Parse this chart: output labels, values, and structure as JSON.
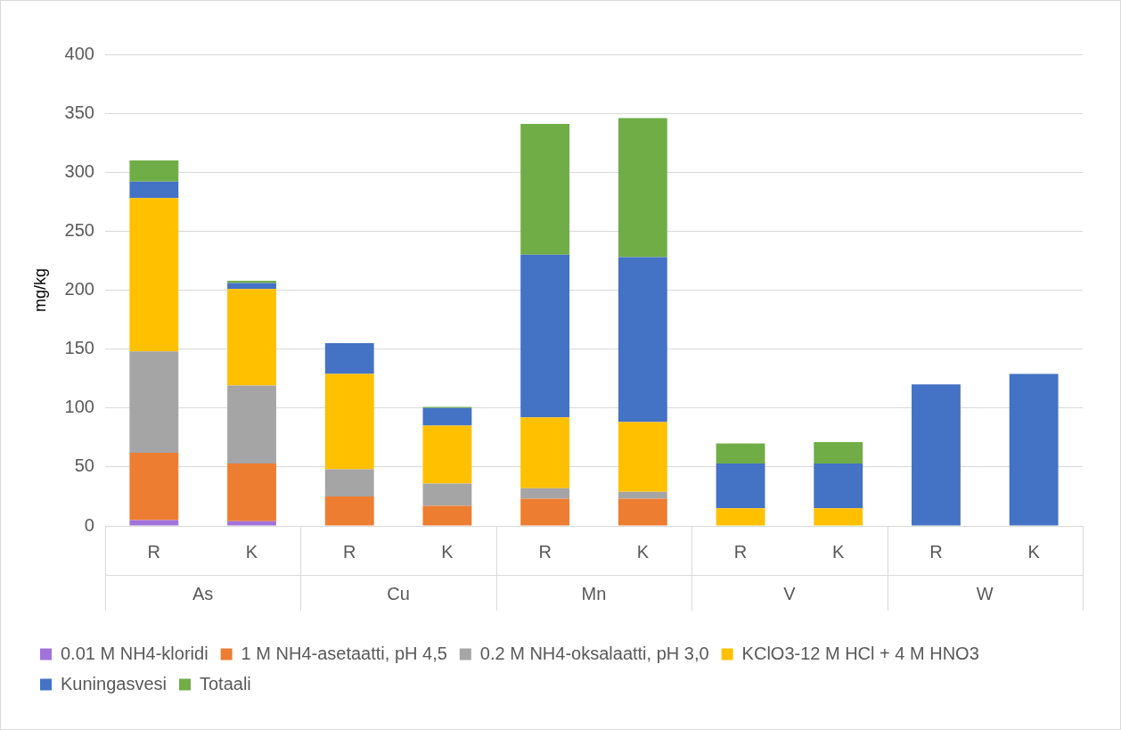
{
  "chart_data": {
    "type": "bar",
    "stacked": true,
    "ylabel": "mg/kg",
    "categories": [
      "R",
      "K",
      "R",
      "K",
      "R",
      "K",
      "R",
      "K",
      "R",
      "K"
    ],
    "annotations": [
      "As",
      "Cu",
      "Mn",
      "V",
      "W"
    ],
    "series": [
      {
        "name": "0.01 M NH4-kloridi",
        "color": "#a173d8",
        "values": [
          5,
          4,
          null,
          null,
          null,
          null,
          null,
          null,
          null,
          null
        ]
      },
      {
        "name": "1 M NH4-asetaatti, pH 4,5",
        "color": "#ed7d31",
        "values": [
          57,
          49,
          25,
          17,
          23,
          23,
          null,
          null,
          null,
          null
        ]
      },
      {
        "name": "0.2 M NH4-oksalaatti, pH 3,0",
        "color": "#a5a5a5",
        "values": [
          86,
          66,
          23,
          19,
          9,
          6,
          null,
          null,
          null,
          null
        ]
      },
      {
        "name": "KClO3-12 M HCl + 4 M HNO3",
        "color": "#ffc000",
        "values": [
          130,
          82,
          81,
          49,
          60,
          59,
          15,
          15,
          null,
          null
        ]
      },
      {
        "name": "Kuningasvesi",
        "color": "#4472c4",
        "values": [
          14,
          5,
          26,
          15,
          138,
          140,
          38,
          38,
          120,
          129
        ]
      },
      {
        "name": "Totaali",
        "color": "#70ad47",
        "values": [
          18,
          2,
          null,
          1,
          111,
          118,
          17,
          18,
          null,
          null
        ]
      }
    ],
    "ylim": [
      0,
      400
    ],
    "yticks": [
      0,
      50,
      100,
      150,
      200,
      250,
      300,
      350,
      400
    ],
    "grid": "y",
    "legend": "bottom"
  }
}
